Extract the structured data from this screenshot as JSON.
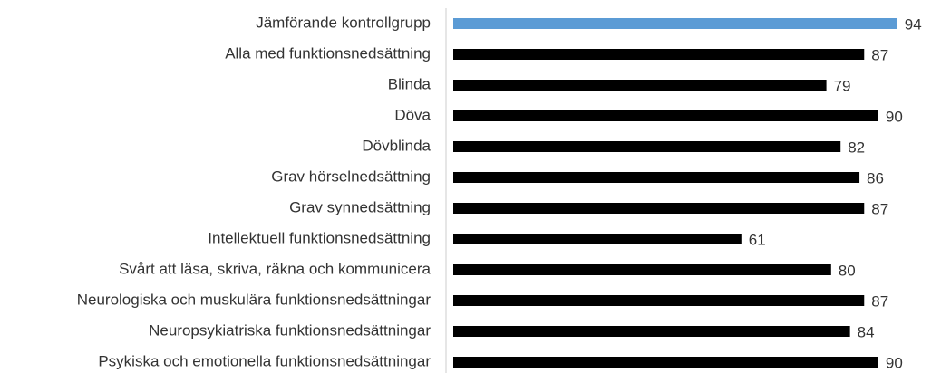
{
  "chart_data": {
    "type": "barh",
    "categories": [
      "Jämförande kontrollgrupp",
      "Alla med funktionsnedsättning",
      "Blinda",
      "Döva",
      "Dövblinda",
      "Grav hörselnedsättning",
      "Grav synnedsättning",
      "Intellektuell funktionsnedsättning",
      "Svårt att läsa, skriva, räkna och kommunicera",
      "Neurologiska och muskulära funktionsnedsättningar",
      "Neuropsykiatriska funktionsnedsättningar",
      "Psykiska och emotionella funktionsnedsättningar"
    ],
    "values": [
      94,
      87,
      79,
      90,
      82,
      86,
      87,
      61,
      80,
      87,
      84,
      90
    ],
    "colors": [
      "#5b9bd5",
      "#000000",
      "#000000",
      "#000000",
      "#000000",
      "#000000",
      "#000000",
      "#000000",
      "#000000",
      "#000000",
      "#000000",
      "#000000"
    ],
    "xlim": [
      0,
      100
    ]
  }
}
